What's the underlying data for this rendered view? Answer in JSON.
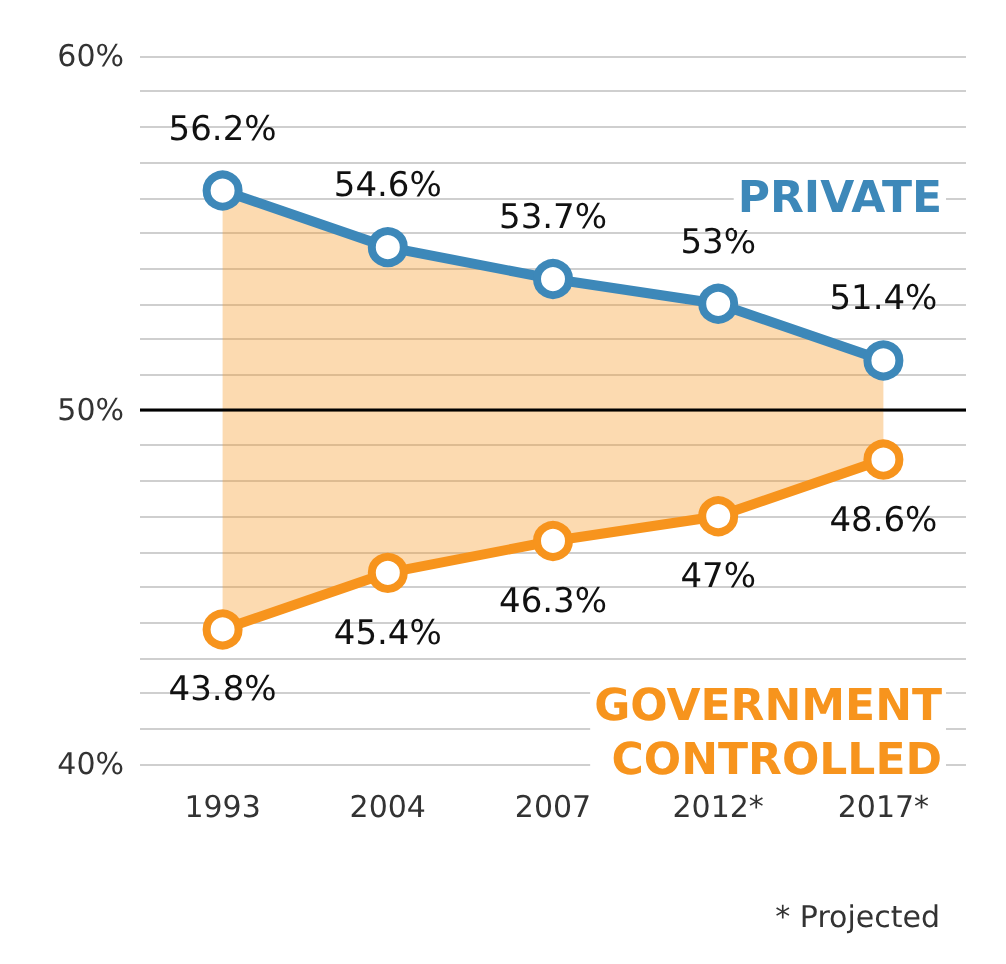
{
  "chart_data": {
    "type": "line",
    "categories": [
      "1993",
      "2004",
      "2007",
      "2012*",
      "2017*"
    ],
    "series": [
      {
        "name": "PRIVATE",
        "color": "#3d88b9",
        "values": [
          56.2,
          54.6,
          53.7,
          53,
          51.4
        ],
        "value_labels": [
          "56.2%",
          "54.6%",
          "53.7%",
          "53%",
          "51.4%"
        ]
      },
      {
        "name": "GOVERNMENT CONTROLLED",
        "color": "#f7941d",
        "values": [
          43.8,
          45.4,
          46.3,
          47,
          48.6
        ],
        "value_labels": [
          "43.8%",
          "45.4%",
          "46.3%",
          "47%",
          "48.6%"
        ],
        "lower": [
          43.8,
          45.4,
          46.3,
          47,
          48.6
        ],
        "upper": [
          56.2,
          54.6,
          53.7,
          53,
          51.4
        ]
      }
    ],
    "ylim": [
      40,
      60
    ],
    "yticks": [
      {
        "value": 40,
        "label": "40%"
      },
      {
        "value": 41,
        "label": null
      },
      {
        "value": 42,
        "label": null
      },
      {
        "value": 43,
        "label": null
      },
      {
        "value": 44,
        "label": null
      },
      {
        "value": 45,
        "label": null
      },
      {
        "value": 46,
        "label": null
      },
      {
        "value": 47,
        "label": null
      },
      {
        "value": 48,
        "label": null
      },
      {
        "value": 49,
        "label": null
      },
      {
        "value": 50,
        "label": "50%"
      },
      {
        "value": 51,
        "label": null
      },
      {
        "value": 52,
        "label": null
      },
      {
        "value": 53,
        "label": null
      },
      {
        "value": 54,
        "label": null
      },
      {
        "value": 55,
        "label": null
      },
      {
        "value": 56,
        "label": null
      },
      {
        "value": 57,
        "label": null
      },
      {
        "value": 58,
        "label": null
      },
      {
        "value": 59,
        "label": null
      },
      {
        "value": 60,
        "label": "60%"
      }
    ],
    "grid": "y",
    "marker": "circle",
    "line_style": "solid",
    "legend": false,
    "ref_lines": [
      {
        "axis": "y",
        "value": 50,
        "label": null,
        "color": "#000000"
      }
    ],
    "annotations": [
      "* Projected"
    ]
  }
}
